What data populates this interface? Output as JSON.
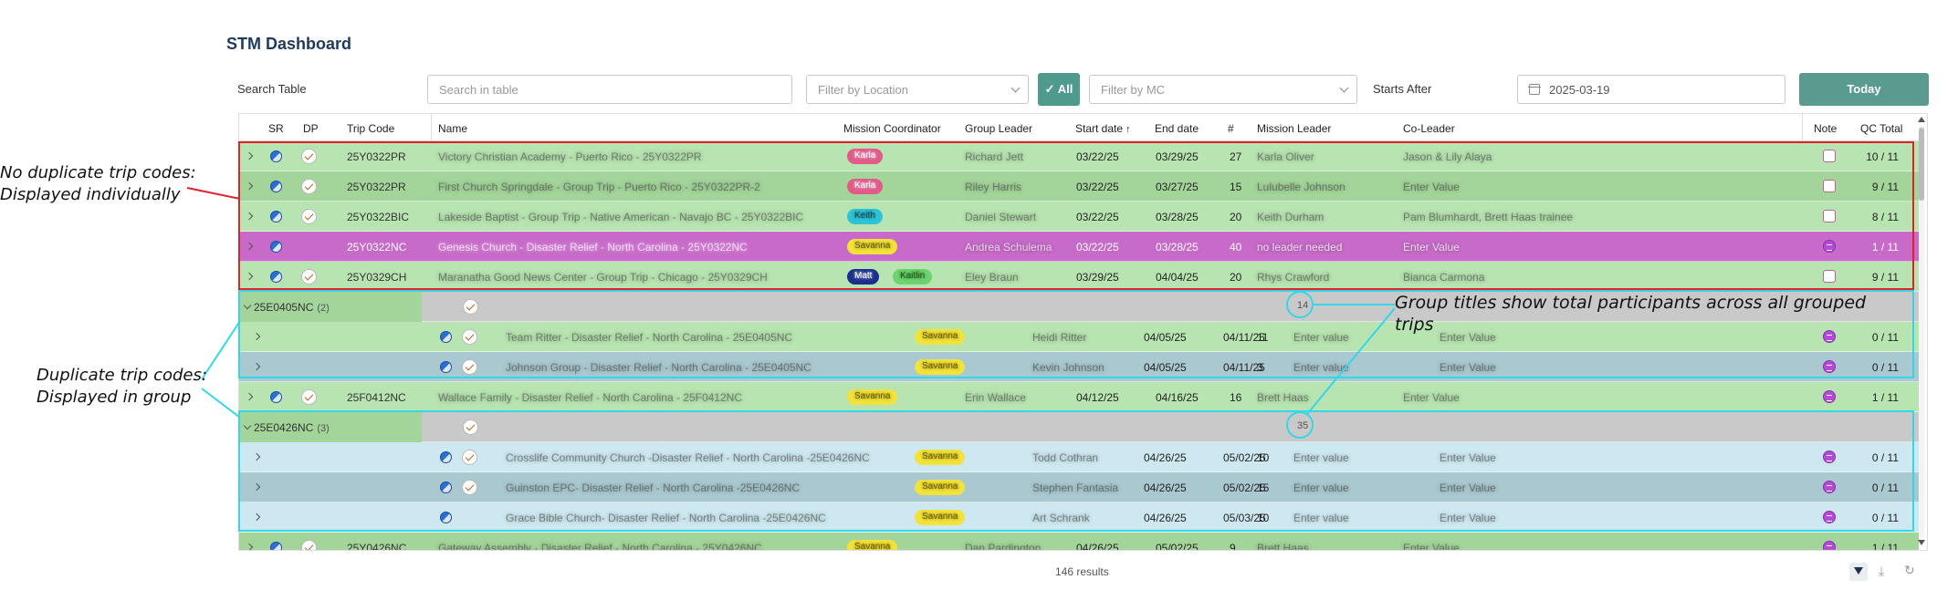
{
  "page": {
    "title": "STM Dashboard"
  },
  "toolbar": {
    "search_label": "Search Table",
    "search_placeholder": "Search in table",
    "location_placeholder": "Filter by Location",
    "all_button": "✓ All",
    "mc_placeholder": "Filter by MC",
    "starts_after_label": "Starts After",
    "starts_after_value": "2025-03-19",
    "today_button": "Today"
  },
  "table": {
    "headers": {
      "sr": "SR",
      "dp": "DP",
      "trip_code": "Trip Code",
      "name": "Name",
      "mission_coordinator": "Mission Coordinator",
      "group_leader": "Group Leader",
      "start_date": "Start date",
      "start_date_sort": "↑",
      "end_date": "End date",
      "count": "#",
      "mission_leader": "Mission Leader",
      "co_leader": "Co-Leader",
      "note": "Note",
      "qc_total": "QC Total"
    },
    "rows": [
      {
        "type": "row",
        "color": "#b7e4b0",
        "trip_code": "25Y0322PR",
        "name": "Victory Christian Academy - Puerto Rico - 25Y0322PR",
        "mc": [
          "Karla"
        ],
        "group_leader": "Richard Jett",
        "start": "03/22/25",
        "end": "03/29/25",
        "count": "27",
        "mission_leader": "Karla Oliver",
        "co_leader": "Jason & Lily Alaya",
        "note": "outline",
        "qc": "10 / 11",
        "dp": true
      },
      {
        "type": "row",
        "color": "#a3d49a",
        "trip_code": "25Y0322PR",
        "name": "First Church Springdale - Group Trip - Puerto Rico - 25Y0322PR-2",
        "mc": [
          "Karla"
        ],
        "group_leader": "Riley Harris",
        "start": "03/22/25",
        "end": "03/27/25",
        "count": "15",
        "mission_leader": "Lulubelle Johnson",
        "co_leader": "Enter Value",
        "note": "outline",
        "qc": "9 / 11",
        "dp": true
      },
      {
        "type": "row",
        "color": "#b7e4b0",
        "trip_code": "25Y0322BIC",
        "name": "Lakeside Baptist - Group Trip - Native American - Navajo BC - 25Y0322BIC",
        "mc": [
          "Keith"
        ],
        "group_leader": "Daniel Stewart",
        "start": "03/22/25",
        "end": "03/28/25",
        "count": "20",
        "mission_leader": "Keith Durham",
        "co_leader": "Pam Blumhardt, Brett Haas trainee",
        "note": "outline",
        "qc": "8 / 11",
        "dp": true
      },
      {
        "type": "row",
        "color": "#c86ac9",
        "trip_code": "25Y0322NC",
        "name": "Genesis Church - Disaster Relief - North Carolina - 25Y0322NC",
        "mc": [
          "Savanna"
        ],
        "group_leader": "Andrea Schulema",
        "start": "03/22/25",
        "end": "03/28/25",
        "count": "40",
        "mission_leader": "no leader needed",
        "co_leader": "Enter Value",
        "note": "purple",
        "qc": "1 / 11",
        "dp": false,
        "light": true
      },
      {
        "type": "row",
        "color": "#b7e4b0",
        "trip_code": "25Y0329CH",
        "name": "Maranatha Good News Center - Group Trip - Chicago - 25Y0329CH",
        "mc": [
          "Matt",
          "Kaitlin"
        ],
        "group_leader": "Eley Braun",
        "start": "03/29/25",
        "end": "04/04/25",
        "count": "20",
        "mission_leader": "Rhys Crawford",
        "co_leader": "Bianca Carmona",
        "note": "outline",
        "qc": "9 / 11",
        "dp": true
      },
      {
        "type": "group",
        "trip_code": "25E0405NC",
        "group_count": "(2)",
        "total": "14"
      },
      {
        "type": "sub",
        "color": "#b7e4b0",
        "name": "Team Ritter - Disaster Relief - North Carolina - 25E0405NC",
        "mc": [
          "Savanna"
        ],
        "group_leader": "Heidi Ritter",
        "start": "04/05/25",
        "end": "04/11/25",
        "count": "11",
        "mission_leader": "Enter value",
        "co_leader": "Enter Value",
        "note": "purple",
        "qc": "0 / 11",
        "dp": true
      },
      {
        "type": "sub",
        "color": "#a9c8cf",
        "name": "Johnson Group - Disaster Relief - North Carolina - 25E0405NC",
        "mc": [
          "Savanna"
        ],
        "group_leader": "Kevin Johnson",
        "start": "04/05/25",
        "end": "04/11/25",
        "count": "3",
        "mission_leader": "Enter value",
        "co_leader": "Enter Value",
        "note": "purple",
        "qc": "0 / 11",
        "dp": true
      },
      {
        "type": "row",
        "color": "#b7e4b0",
        "trip_code": "25F0412NC",
        "name": "Wallace Family - Disaster Relief - North Carolina - 25F0412NC",
        "mc": [
          "Savanna"
        ],
        "group_leader": "Erin Wallace",
        "start": "04/12/25",
        "end": "04/16/25",
        "count": "16",
        "mission_leader": "Brett Haas",
        "co_leader": "Enter Value",
        "note": "purple",
        "qc": "1 / 11",
        "dp": true
      },
      {
        "type": "group",
        "trip_code": "25E0426NC",
        "group_count": "(3)",
        "total": "35"
      },
      {
        "type": "sub",
        "color": "#cde8f0",
        "name": "Crosslife Community Church -Disaster Relief - North Carolina -25E0426NC",
        "mc": [
          "Savanna"
        ],
        "group_leader": "Todd Cothran",
        "start": "04/26/25",
        "end": "05/02/25",
        "count": "10",
        "mission_leader": "Enter value",
        "co_leader": "Enter Value",
        "note": "purple",
        "qc": "0 / 11",
        "dp": true
      },
      {
        "type": "sub",
        "color": "#a9c8cf",
        "name": "Guinston EPC- Disaster Relief - North Carolina -25E0426NC",
        "mc": [
          "Savanna"
        ],
        "group_leader": "Stephen Fantasia",
        "start": "04/26/25",
        "end": "05/02/25",
        "count": "15",
        "mission_leader": "Enter value",
        "co_leader": "Enter Value",
        "note": "purple",
        "qc": "0 / 11",
        "dp": true
      },
      {
        "type": "sub",
        "color": "#cde8f0",
        "name": "Grace Bible Church- Disaster Relief - North Carolina -25E0426NC",
        "mc": [
          "Savanna"
        ],
        "group_leader": "Art Schrank",
        "start": "04/26/25",
        "end": "05/03/25",
        "count": "10",
        "mission_leader": "Enter value",
        "co_leader": "Enter Value",
        "note": "purple",
        "qc": "0 / 11",
        "dp": false
      },
      {
        "type": "row",
        "color": "#a3d49a",
        "trip_code": "25Y0426NC",
        "name": "Gateway Assembly - Disaster Relief - North Carolina - 25Y0426NC",
        "mc": [
          "Savanna"
        ],
        "group_leader": "Dan Pardington",
        "start": "04/26/25",
        "end": "05/02/25",
        "count": "9",
        "mission_leader": "Brett Haas",
        "co_leader": "Enter Value",
        "note": "purple",
        "qc": "1 / 11",
        "dp": true
      }
    ]
  },
  "footer": {
    "results": "146 results"
  },
  "annotations": {
    "left_top": [
      "No duplicate trip codes:",
      "Displayed individually"
    ],
    "left_bottom": [
      "Duplicate trip codes:",
      "Displayed in group"
    ],
    "right": "Group titles show total participants across all grouped trips"
  },
  "colors": {
    "accent": "#5a9b8f",
    "red_highlight": "#e0202a",
    "cyan_highlight": "#33d7e8",
    "tag_Karla": "#e05a8a",
    "tag_Keith": "#2ec4d6",
    "tag_Savanna": "#f2e23a",
    "tag_Matt": "#1a2f8c",
    "tag_Kaitlin": "#6ed36e",
    "group_header": "#c9c9c9"
  }
}
